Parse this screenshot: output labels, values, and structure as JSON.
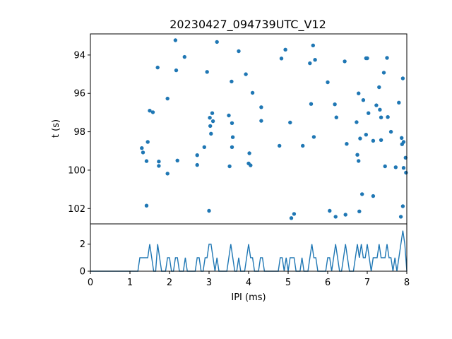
{
  "chart_data": {
    "type": "scatter",
    "title": "20230427_094739UTC_V12",
    "color": "#1f77b4",
    "top_panel": {
      "type": "scatter",
      "xlabel": "",
      "ylabel": "t (s)",
      "xlim": [
        0,
        8
      ],
      "ylim": [
        102.8,
        92.9
      ],
      "y_inverted": true,
      "yticks": [
        "94",
        "96",
        "98",
        "100",
        "102"
      ],
      "points": [
        [
          1.3,
          98.85
        ],
        [
          1.33,
          99.08
        ],
        [
          1.42,
          99.53
        ],
        [
          1.42,
          101.85
        ],
        [
          1.45,
          98.53
        ],
        [
          1.5,
          96.9
        ],
        [
          1.58,
          96.98
        ],
        [
          1.7,
          94.65
        ],
        [
          1.73,
          99.55
        ],
        [
          1.73,
          99.78
        ],
        [
          1.95,
          96.27
        ],
        [
          1.95,
          100.18
        ],
        [
          2.15,
          93.23
        ],
        [
          2.17,
          94.8
        ],
        [
          2.2,
          99.5
        ],
        [
          2.38,
          94.1
        ],
        [
          2.7,
          99.22
        ],
        [
          2.7,
          99.73
        ],
        [
          2.88,
          98.8
        ],
        [
          2.95,
          94.88
        ],
        [
          3.0,
          102.12
        ],
        [
          3.02,
          97.27
        ],
        [
          3.03,
          97.7
        ],
        [
          3.05,
          98.1
        ],
        [
          3.08,
          97.03
        ],
        [
          3.1,
          97.45
        ],
        [
          3.2,
          93.32
        ],
        [
          3.5,
          97.15
        ],
        [
          3.52,
          99.8
        ],
        [
          3.57,
          95.38
        ],
        [
          3.58,
          98.8
        ],
        [
          3.6,
          98.28
        ],
        [
          3.58,
          97.55
        ],
        [
          3.75,
          93.8
        ],
        [
          3.93,
          95.0
        ],
        [
          4.0,
          99.65
        ],
        [
          4.02,
          99.12
        ],
        [
          4.05,
          99.75
        ],
        [
          4.1,
          95.97
        ],
        [
          4.32,
          96.72
        ],
        [
          4.32,
          97.43
        ],
        [
          4.78,
          98.73
        ],
        [
          4.83,
          94.18
        ],
        [
          4.93,
          93.72
        ],
        [
          5.05,
          97.52
        ],
        [
          5.08,
          102.5
        ],
        [
          5.15,
          102.28
        ],
        [
          5.37,
          98.73
        ],
        [
          5.55,
          94.43
        ],
        [
          5.58,
          96.55
        ],
        [
          5.63,
          93.5
        ],
        [
          5.65,
          98.27
        ],
        [
          5.68,
          94.25
        ],
        [
          6.0,
          95.42
        ],
        [
          6.05,
          102.12
        ],
        [
          6.18,
          96.57
        ],
        [
          6.2,
          102.43
        ],
        [
          6.22,
          97.25
        ],
        [
          6.43,
          94.33
        ],
        [
          6.45,
          102.32
        ],
        [
          6.48,
          98.63
        ],
        [
          6.73,
          97.5
        ],
        [
          6.75,
          99.2
        ],
        [
          6.78,
          99.52
        ],
        [
          6.8,
          102.15
        ],
        [
          6.78,
          96.0
        ],
        [
          6.82,
          98.35
        ],
        [
          6.87,
          101.25
        ],
        [
          6.9,
          96.35
        ],
        [
          6.97,
          94.17
        ],
        [
          6.97,
          98.15
        ],
        [
          7.0,
          94.17
        ],
        [
          7.03,
          97.03
        ],
        [
          7.15,
          98.47
        ],
        [
          7.15,
          101.35
        ],
        [
          7.23,
          96.62
        ],
        [
          7.3,
          95.68
        ],
        [
          7.32,
          96.85
        ],
        [
          7.35,
          97.25
        ],
        [
          7.35,
          98.43
        ],
        [
          7.42,
          94.92
        ],
        [
          7.45,
          99.8
        ],
        [
          7.5,
          94.15
        ],
        [
          7.52,
          97.23
        ],
        [
          7.6,
          98.0
        ],
        [
          7.72,
          99.85
        ],
        [
          7.8,
          96.48
        ],
        [
          7.85,
          102.43
        ],
        [
          7.87,
          98.32
        ],
        [
          7.88,
          98.65
        ],
        [
          7.9,
          95.22
        ],
        [
          7.9,
          101.88
        ],
        [
          7.92,
          98.53
        ],
        [
          7.92,
          99.88
        ],
        [
          7.97,
          99.35
        ],
        [
          7.98,
          100.13
        ]
      ]
    },
    "bottom_panel": {
      "type": "line",
      "xlabel": "IPI (ms)",
      "ylabel": "",
      "xlim": [
        0,
        8
      ],
      "ylim": [
        0,
        3.5
      ],
      "xticks": [
        "0",
        "1",
        "2",
        "3",
        "4",
        "5",
        "6",
        "7",
        "8"
      ],
      "yticks": [
        "0",
        "2"
      ],
      "counts": [
        [
          1.25,
          1
        ],
        [
          1.3,
          1
        ],
        [
          1.35,
          1
        ],
        [
          1.4,
          1
        ],
        [
          1.45,
          1
        ],
        [
          1.5,
          2
        ],
        [
          1.55,
          1
        ],
        [
          1.7,
          2
        ],
        [
          1.75,
          1
        ],
        [
          1.95,
          1
        ],
        [
          2.0,
          1
        ],
        [
          2.15,
          1
        ],
        [
          2.2,
          1
        ],
        [
          2.4,
          1
        ],
        [
          2.7,
          1
        ],
        [
          2.75,
          1
        ],
        [
          2.9,
          1
        ],
        [
          2.95,
          1
        ],
        [
          3.0,
          2
        ],
        [
          3.05,
          2
        ],
        [
          3.1,
          1
        ],
        [
          3.2,
          1
        ],
        [
          3.5,
          1
        ],
        [
          3.55,
          2
        ],
        [
          3.6,
          1
        ],
        [
          3.75,
          1
        ],
        [
          3.95,
          1
        ],
        [
          4.0,
          2
        ],
        [
          4.05,
          1
        ],
        [
          4.1,
          1
        ],
        [
          4.3,
          1
        ],
        [
          4.35,
          1
        ],
        [
          4.8,
          1
        ],
        [
          4.85,
          1
        ],
        [
          4.95,
          1
        ],
        [
          5.05,
          1
        ],
        [
          5.1,
          1
        ],
        [
          5.15,
          1
        ],
        [
          5.35,
          1
        ],
        [
          5.55,
          1
        ],
        [
          5.6,
          2
        ],
        [
          5.65,
          1
        ],
        [
          5.7,
          1
        ],
        [
          6.0,
          1
        ],
        [
          6.05,
          1
        ],
        [
          6.15,
          1
        ],
        [
          6.2,
          2
        ],
        [
          6.25,
          1
        ],
        [
          6.4,
          1
        ],
        [
          6.45,
          2
        ],
        [
          6.5,
          1
        ],
        [
          6.7,
          1
        ],
        [
          6.75,
          2
        ],
        [
          6.8,
          1
        ],
        [
          6.85,
          2
        ],
        [
          6.9,
          1
        ],
        [
          6.95,
          1
        ],
        [
          7.0,
          2
        ],
        [
          7.05,
          1
        ],
        [
          7.15,
          1
        ],
        [
          7.2,
          1
        ],
        [
          7.25,
          1
        ],
        [
          7.3,
          2
        ],
        [
          7.35,
          1
        ],
        [
          7.4,
          1
        ],
        [
          7.45,
          1
        ],
        [
          7.5,
          2
        ],
        [
          7.55,
          1
        ],
        [
          7.6,
          1
        ],
        [
          7.7,
          1
        ],
        [
          7.8,
          1
        ],
        [
          7.85,
          2
        ],
        [
          7.9,
          3
        ],
        [
          7.95,
          2
        ]
      ]
    }
  }
}
